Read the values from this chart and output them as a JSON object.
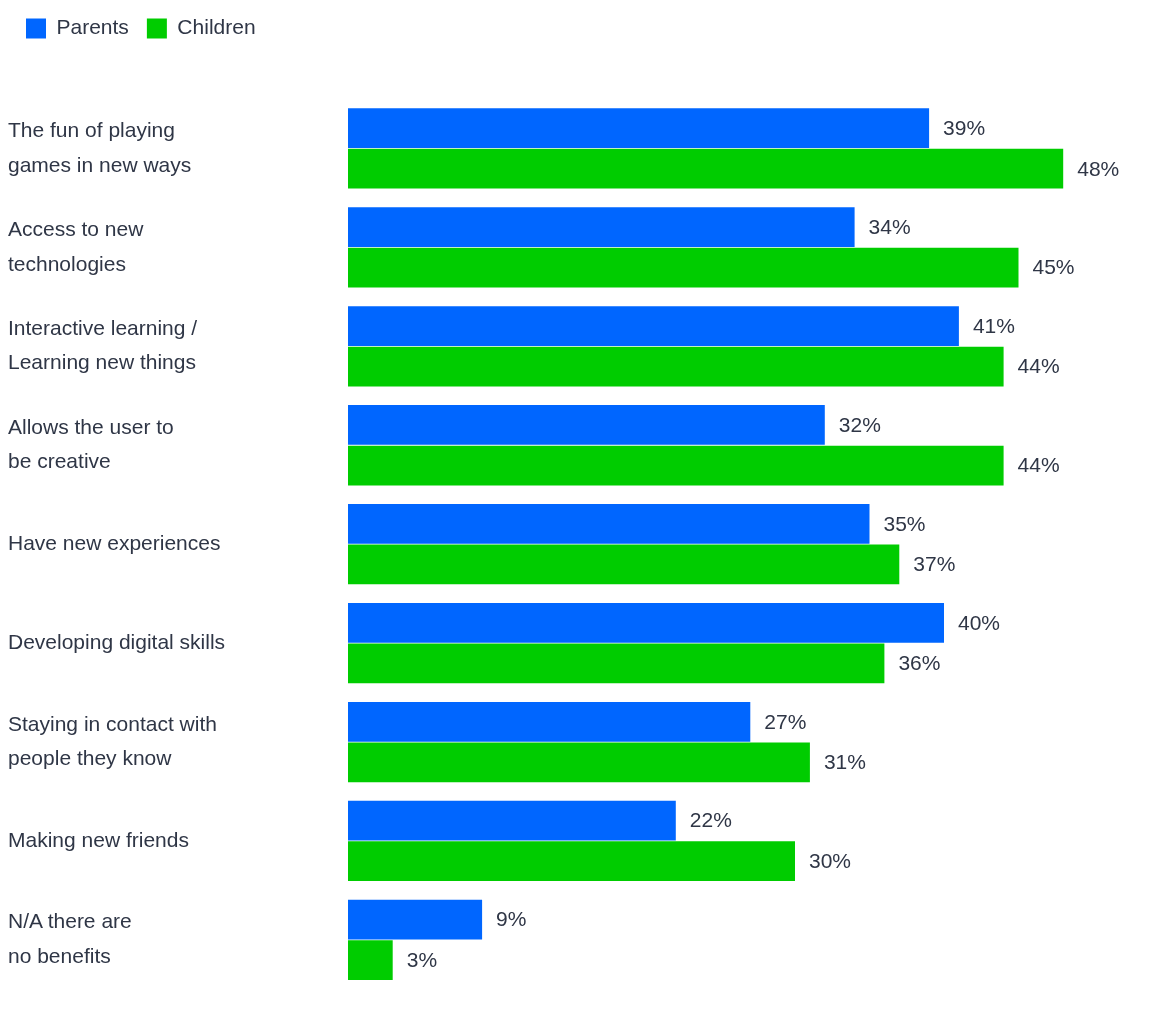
{
  "chart_data": {
    "type": "bar",
    "orientation": "horizontal",
    "legend": "top left",
    "tick_labels": "y",
    "categories": [
      "The fun of playing\ngames in new ways",
      "Access to new\ntechnologies",
      "Interactive learning /\nLearning new things",
      "Allows the user to\nbe creative",
      "Have new experiences",
      "Developing digital skills",
      "Staying in contact with\npeople they know",
      "Making new friends",
      "N/A there are\nno benefits"
    ],
    "series": [
      {
        "name": "Parents",
        "color": "#0066ff",
        "values": [
          39,
          34,
          41,
          32,
          35,
          40,
          27,
          22,
          9
        ],
        "value_labels": [
          "39%",
          "34%",
          "41%",
          "32%",
          "35%",
          "40%",
          "27%",
          "22%",
          "9%"
        ]
      },
      {
        "name": "Children",
        "color": "#00cc00",
        "values": [
          48,
          45,
          44,
          44,
          37,
          36,
          31,
          30,
          3
        ],
        "value_labels": [
          "48%",
          "45%",
          "44%",
          "44%",
          "37%",
          "36%",
          "31%",
          "30%",
          "3%"
        ]
      }
    ]
  }
}
